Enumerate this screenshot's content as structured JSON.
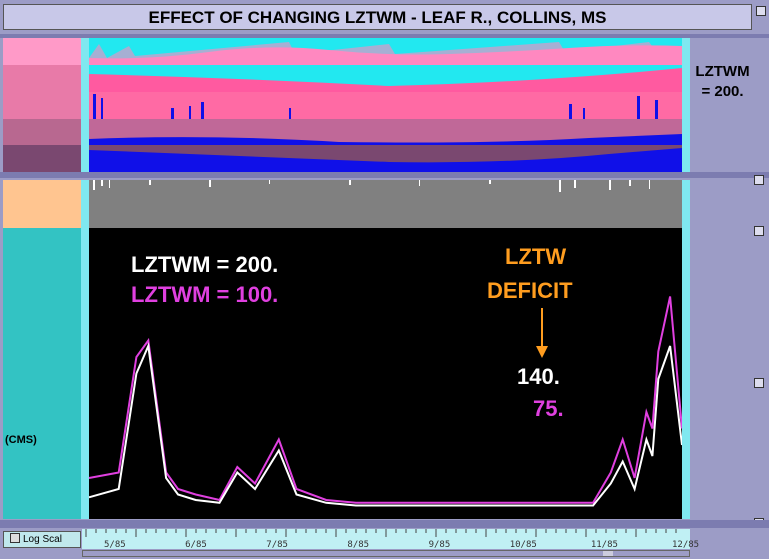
{
  "title": "EFFECT OF CHANGING LZTWM - LEAF R., COLLINS, MS",
  "right_label_line1": "LZTWM",
  "right_label_line2": "= 200.",
  "cms_label": "(CMS)",
  "log_scale_label": "Log Scal",
  "colors": {
    "pink": "#ff88c0",
    "cyan": "#22e8f0",
    "blue": "#1010e8",
    "white_series": "#ffffff",
    "magenta_series": "#e040e0",
    "orange": "#ff9d1f",
    "grey": "#808080",
    "chart_bg": "#000000"
  },
  "annotations": {
    "legend_white": "LZTWM = 200.",
    "legend_magenta": "LZTWM = 100.",
    "deficit_line1": "LZTW",
    "deficit_line2": "DEFICIT",
    "deficit_white_value": "140.",
    "deficit_magenta_value": "75."
  },
  "x_tick_labels": [
    "5/85",
    "6/85",
    "7/85",
    "8/85",
    "9/85",
    "10/85",
    "11/85",
    "12/85"
  ],
  "chart_data": {
    "type": "line",
    "x": [
      0,
      5,
      8,
      10,
      13,
      15,
      18,
      22,
      25,
      28,
      32,
      35,
      40,
      45,
      50,
      55,
      58,
      62,
      65,
      68,
      72,
      75,
      80,
      85,
      88,
      90,
      92,
      94,
      95,
      96,
      98,
      100
    ],
    "series": [
      {
        "name": "LZTWM = 200.",
        "color": "#ffffff",
        "values": [
          5,
          8,
          50,
          60,
          12,
          6,
          4,
          3,
          14,
          8,
          22,
          6,
          3,
          2,
          2,
          2,
          2,
          2,
          2,
          2,
          2,
          2,
          2,
          2,
          10,
          18,
          8,
          26,
          20,
          48,
          60,
          24
        ]
      },
      {
        "name": "LZTWM = 100.",
        "color": "#e040e0",
        "values": [
          12,
          14,
          56,
          62,
          14,
          8,
          6,
          4,
          16,
          10,
          26,
          8,
          4,
          3,
          3,
          3,
          3,
          3,
          3,
          3,
          3,
          3,
          3,
          3,
          14,
          26,
          12,
          36,
          30,
          58,
          78,
          30
        ]
      }
    ],
    "ylim": [
      0,
      100
    ]
  }
}
